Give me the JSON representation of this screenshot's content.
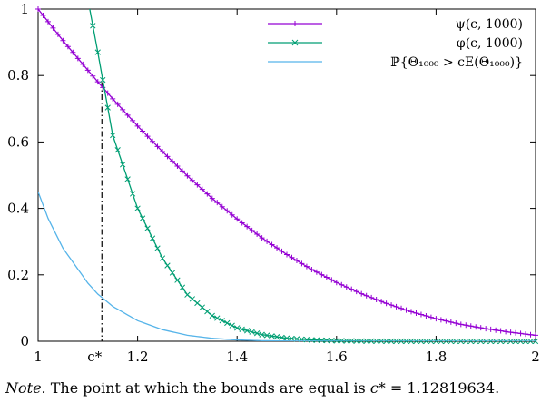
{
  "chart_data": {
    "type": "line",
    "xlim": [
      1,
      2
    ],
    "ylim": [
      0,
      1
    ],
    "x_ticks": [
      1,
      1.2,
      1.4,
      1.6,
      1.8,
      2
    ],
    "x_tick_labels": [
      "1",
      "1.2",
      "1.4",
      "1.6",
      "1.8",
      "2"
    ],
    "y_ticks": [
      0,
      0.2,
      0.4,
      0.6,
      0.8,
      1
    ],
    "y_tick_labels": [
      "0",
      "0.2",
      "0.4",
      "0.6",
      "0.8",
      "1"
    ],
    "grid": false,
    "legend_position": "top-right",
    "x": [
      1.0,
      1.02,
      1.05,
      1.1,
      1.12,
      1.15,
      1.2,
      1.25,
      1.3,
      1.35,
      1.4,
      1.45,
      1.5,
      1.55,
      1.6,
      1.65,
      1.7,
      1.75,
      1.8,
      1.85,
      1.9,
      1.95,
      2.0
    ],
    "series": [
      {
        "name": "ψ(c, 1000)",
        "marker": "plus",
        "color": "#9400d3",
        "values": [
          1.0,
          0.962,
          0.905,
          0.816,
          0.781,
          0.73,
          0.648,
          0.571,
          0.498,
          0.43,
          0.368,
          0.311,
          0.261,
          0.216,
          0.177,
          0.143,
          0.114,
          0.089,
          0.068,
          0.051,
          0.038,
          0.027,
          0.018
        ]
      },
      {
        "name": "φ(c, 1000)",
        "marker": "cross",
        "color": "#009e73",
        "values": [
          null,
          null,
          null,
          1.03,
          0.87,
          0.62,
          0.4,
          0.25,
          0.14,
          0.077,
          0.04,
          0.02,
          0.009,
          0.004,
          0.0016,
          0.0006,
          0.0002,
          0.0001,
          0.0,
          0.0,
          0.0,
          0.0,
          0.0
        ]
      },
      {
        "name": "ℙ{Θ₁₀₀₀ > cE(Θ₁₀₀₀)}",
        "marker": "none",
        "color": "#56b4e9",
        "values": [
          0.45,
          0.37,
          0.28,
          0.175,
          0.142,
          0.105,
          0.062,
          0.035,
          0.018,
          0.009,
          0.004,
          0.0018,
          0.0008,
          0.0003,
          0.0001,
          0.0,
          0.0,
          0.0,
          0.0,
          0.0,
          0.0,
          0.0,
          0.0
        ]
      }
    ],
    "annotation": {
      "label": "c*",
      "x": 1.12819634,
      "y": 0.78,
      "style": "dash-dot vertical line"
    }
  },
  "note": {
    "lead": "Note.",
    "text": " The point at which the bounds are equal is ",
    "var": "c",
    "text_after": "* = 1.12819634."
  }
}
